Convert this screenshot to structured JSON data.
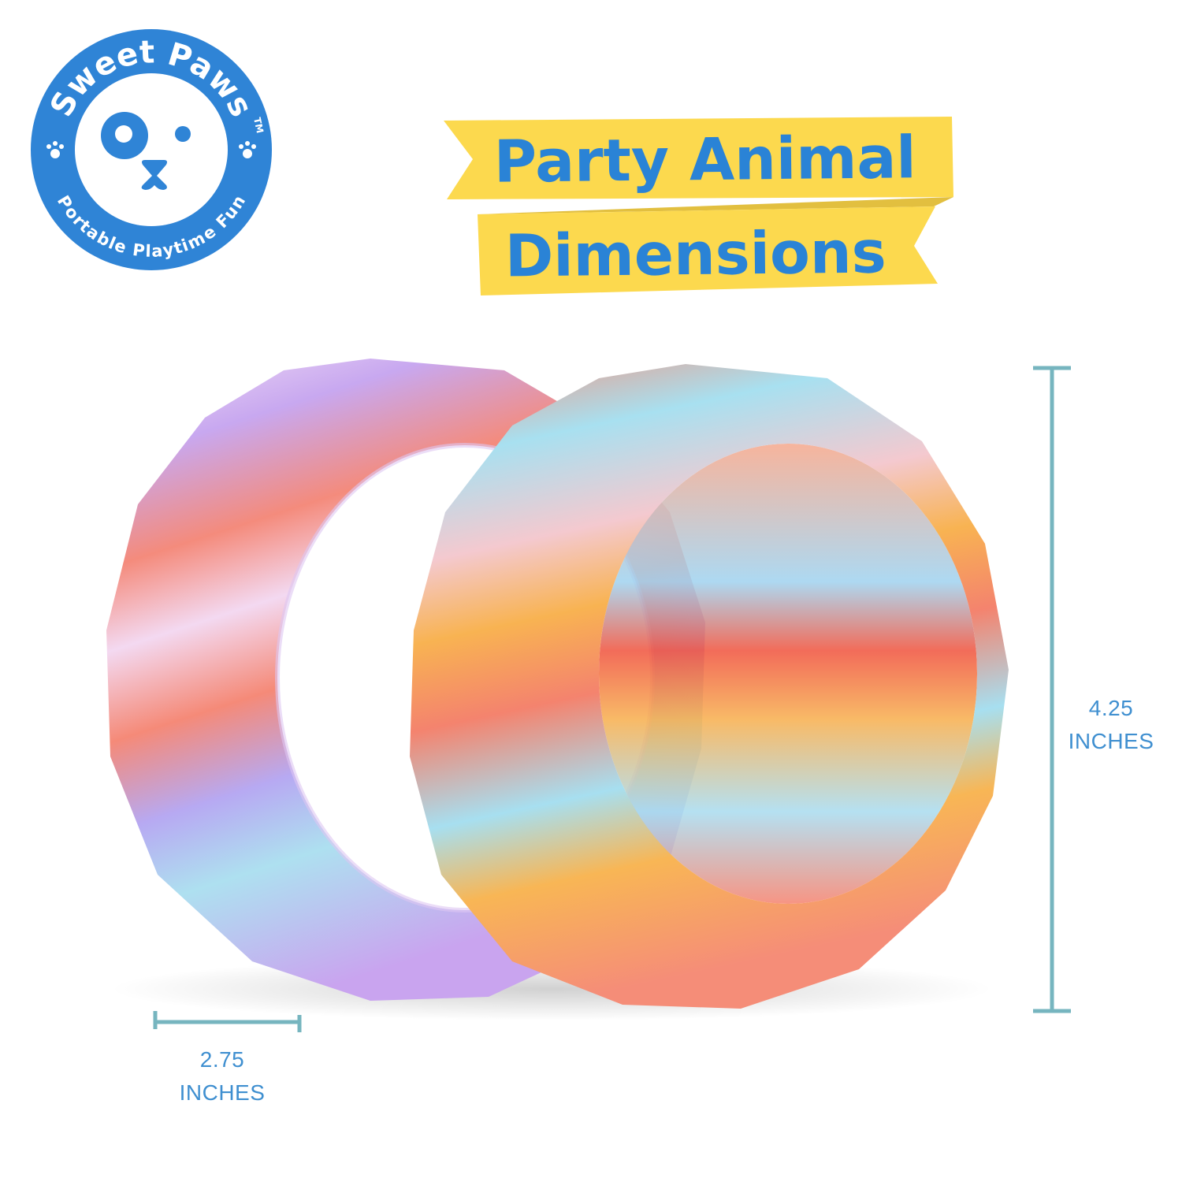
{
  "logo": {
    "brand": "Sweet Paws",
    "trademark": "TM",
    "tagline": "Portable Playtime Fun",
    "color": "#2f84d6"
  },
  "banner": {
    "line1": "Party Animal",
    "line2": "Dimensions",
    "ribbon_color": "#fcd94e",
    "text_color": "#2a83d6"
  },
  "dimensions": {
    "height": {
      "value": "4.25",
      "unit": "INCHES"
    },
    "width": {
      "value": "2.75",
      "unit": "INCHES"
    },
    "line_color": "#76b5bf"
  },
  "product": {
    "item": "two tie-dye silicone bracelets",
    "colors": [
      "#f58a78",
      "#a9def0",
      "#c7a6f0",
      "#f8b352",
      "#f4dff3"
    ]
  }
}
